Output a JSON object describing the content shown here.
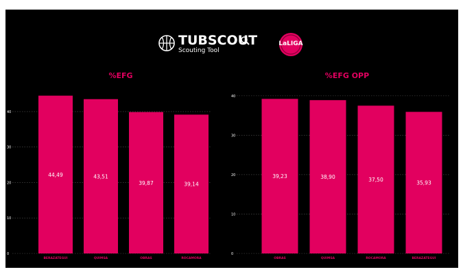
{
  "header": {
    "brand_name": "TUBSCOUT",
    "brand_tagline": "Scouting Tool",
    "league_logo_text": "LaLIGA"
  },
  "colors": {
    "background": "#000000",
    "bar": "#e2005f",
    "title": "#e2005f",
    "label": "#ffffff",
    "grid": "#555555"
  },
  "chart_data": [
    {
      "type": "bar",
      "title": "%EFG",
      "categories": [
        "BERAZATEGUI",
        "QUIMSA",
        "OBRAS",
        "ROCAMORA"
      ],
      "values": [
        44.49,
        43.51,
        39.87,
        39.14
      ],
      "value_labels": [
        "44,49",
        "43,51",
        "39,87",
        "39,14"
      ],
      "ylim": [
        0,
        45
      ],
      "yticks": [
        0,
        10,
        20,
        30,
        40
      ],
      "grid": true,
      "xlabel": "",
      "ylabel": ""
    },
    {
      "type": "bar",
      "title": "%EFG OPP",
      "categories": [
        "OBRAS",
        "QUIMSA",
        "ROCAMORA",
        "BERAZATEGUI"
      ],
      "values": [
        39.23,
        38.9,
        37.5,
        35.93
      ],
      "value_labels": [
        "39,23",
        "38,90",
        "37,50",
        "35,93"
      ],
      "ylim": [
        0,
        40.5
      ],
      "yticks": [
        0,
        10,
        20,
        30,
        40
      ],
      "grid": true,
      "xlabel": "",
      "ylabel": ""
    }
  ]
}
